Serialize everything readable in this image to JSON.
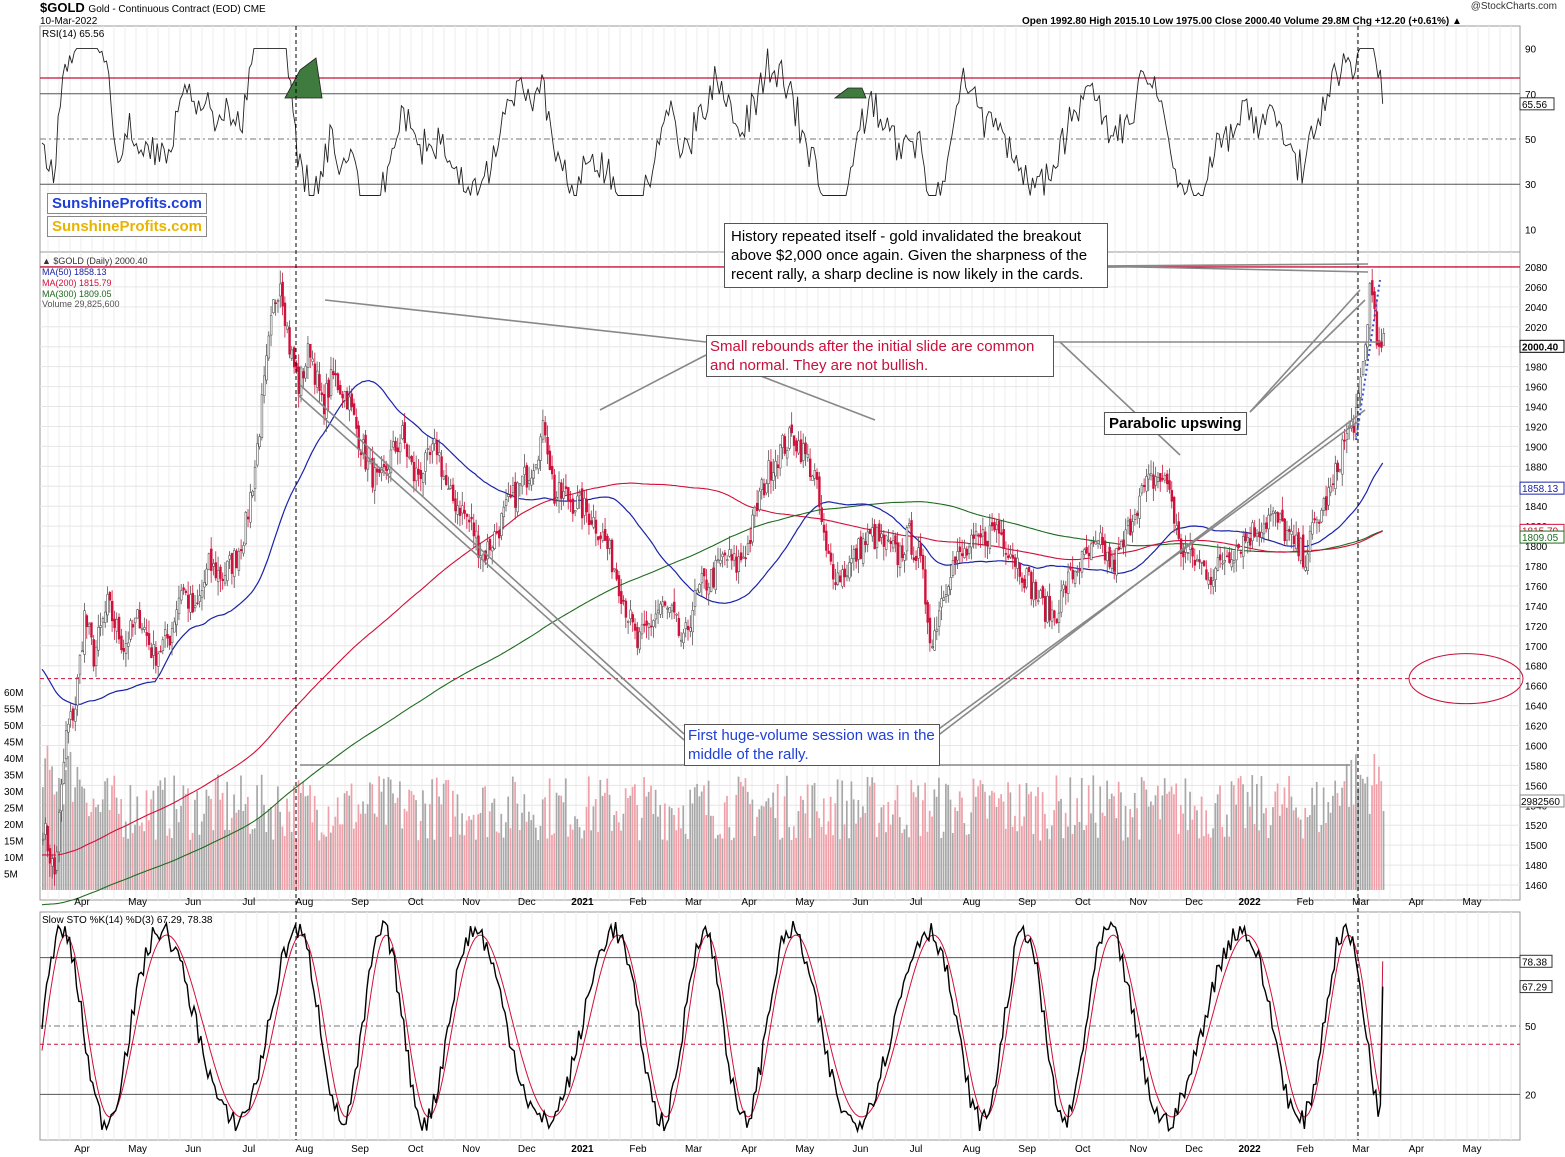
{
  "header": {
    "symbol": "$GOLD",
    "description": "Gold - Continuous Contract (EOD)  CME",
    "date": "10-Mar-2022",
    "ohlc": "Open 1992.80  High 2015.10  Low 1975.00  Close 2000.40  Volume 29.8M  Chg +12.20 (+0.61%) ▲",
    "credit": "@StockCharts.com"
  },
  "branding": {
    "line1": "SunshineProfits.com",
    "line2": "SunshineProfits.com",
    "color1": "#1f3fd6",
    "color2": "#e8b400"
  },
  "legend": {
    "price": "▲ $GOLD (Daily) 2000.40",
    "ma50": "MA(50) 1858.13",
    "ma200": "MA(200) 1815.79",
    "ma300": "MA(300) 1809.05",
    "volume": "Volume 29,825,600"
  },
  "annotations": {
    "history": "History repeated itself - gold invalidated the breakout above $2,000 once again. Given the sharpness of the recent rally, a sharp decline is now likely in the cards.",
    "rebounds": "Small rebounds after the initial slide are common and normal. They are not bullish.",
    "parabolic": "Parabolic upswing",
    "volume": "First huge-volume session was in the middle of the rally."
  },
  "colors": {
    "up": "#555555",
    "down": "#d0103a",
    "ma50": "#1a23a8",
    "ma200": "#d0103a",
    "ma300": "#1f6b1f",
    "rsiFill": "#3f7a3f",
    "volUp": "#a8a8a8",
    "volDown": "#f0a0a8",
    "annoRed": "#c8103a",
    "annoBlue": "#1f3fd6"
  },
  "chart_data": [
    {
      "panel": "rsi",
      "type": "line",
      "title": "RSI(14) 65.56",
      "current": 65.56,
      "levels": [
        30,
        50,
        70
      ],
      "ticks": [
        10,
        30,
        50,
        70,
        90
      ],
      "ylim": [
        0,
        100
      ]
    },
    {
      "panel": "price",
      "type": "candlestick",
      "title": "$GOLD (Daily) 2000.40",
      "months": [
        "Apr",
        "May",
        "Jun",
        "Jul",
        "Aug",
        "Sep",
        "Oct",
        "Nov",
        "Dec",
        "2021",
        "Feb",
        "Mar",
        "Apr",
        "May",
        "Jun",
        "Jul",
        "Aug",
        "Sep",
        "Oct",
        "Nov",
        "Dec",
        "2022",
        "Feb",
        "Mar",
        "Apr",
        "May"
      ],
      "ticks": [
        1460,
        1480,
        1500,
        1520,
        1540,
        1560,
        1580,
        1600,
        1620,
        1640,
        1660,
        1680,
        1700,
        1720,
        1740,
        1760,
        1780,
        1800,
        1820,
        1840,
        1860,
        1880,
        1900,
        1920,
        1940,
        1960,
        1980,
        2000,
        2020,
        2040,
        2060,
        2080
      ],
      "ylim": [
        1445,
        2095
      ],
      "close_path": [
        [
          0,
          1520
        ],
        [
          5,
          1470
        ],
        [
          10,
          1610
        ],
        [
          14,
          1640
        ],
        [
          18,
          1730
        ],
        [
          22,
          1690
        ],
        [
          28,
          1740
        ],
        [
          35,
          1700
        ],
        [
          42,
          1730
        ],
        [
          48,
          1690
        ],
        [
          55,
          1710
        ],
        [
          60,
          1760
        ],
        [
          66,
          1730
        ],
        [
          72,
          1780
        ],
        [
          78,
          1770
        ],
        [
          84,
          1790
        ],
        [
          88,
          1820
        ],
        [
          92,
          1880
        ],
        [
          96,
          1960
        ],
        [
          100,
          2040
        ],
        [
          103,
          2070
        ],
        [
          107,
          2000
        ],
        [
          111,
          1960
        ],
        [
          116,
          2000
        ],
        [
          121,
          1940
        ],
        [
          126,
          1970
        ],
        [
          132,
          1950
        ],
        [
          137,
          1910
        ],
        [
          141,
          1880
        ],
        [
          146,
          1860
        ],
        [
          151,
          1890
        ],
        [
          156,
          1910
        ],
        [
          161,
          1870
        ],
        [
          166,
          1880
        ],
        [
          171,
          1900
        ],
        [
          176,
          1850
        ],
        [
          181,
          1840
        ],
        [
          186,
          1820
        ],
        [
          191,
          1790
        ],
        [
          196,
          1810
        ],
        [
          202,
          1840
        ],
        [
          207,
          1860
        ],
        [
          212,
          1880
        ],
        [
          218,
          1920
        ],
        [
          222,
          1850
        ],
        [
          227,
          1850
        ],
        [
          233,
          1840
        ],
        [
          238,
          1830
        ],
        [
          243,
          1810
        ],
        [
          248,
          1780
        ],
        [
          253,
          1740
        ],
        [
          258,
          1700
        ],
        [
          263,
          1720
        ],
        [
          268,
          1740
        ],
        [
          273,
          1730
        ],
        [
          278,
          1700
        ],
        [
          282,
          1740
        ],
        [
          286,
          1760
        ],
        [
          291,
          1770
        ],
        [
          296,
          1790
        ],
        [
          301,
          1780
        ],
        [
          306,
          1800
        ],
        [
          311,
          1850
        ],
        [
          316,
          1880
        ],
        [
          321,
          1900
        ],
        [
          326,
          1910
        ],
        [
          331,
          1890
        ],
        [
          335,
          1870
        ],
        [
          340,
          1790
        ],
        [
          345,
          1770
        ],
        [
          350,
          1780
        ],
        [
          355,
          1800
        ],
        [
          360,
          1810
        ],
        [
          366,
          1800
        ],
        [
          371,
          1790
        ],
        [
          376,
          1810
        ],
        [
          381,
          1780
        ],
        [
          386,
          1700
        ],
        [
          389,
          1740
        ],
        [
          394,
          1780
        ],
        [
          399,
          1790
        ],
        [
          404,
          1800
        ],
        [
          409,
          1810
        ],
        [
          414,
          1820
        ],
        [
          419,
          1800
        ],
        [
          424,
          1780
        ],
        [
          429,
          1760
        ],
        [
          434,
          1740
        ],
        [
          439,
          1730
        ],
        [
          444,
          1760
        ],
        [
          449,
          1780
        ],
        [
          454,
          1790
        ],
        [
          459,
          1800
        ],
        [
          464,
          1780
        ],
        [
          469,
          1800
        ],
        [
          474,
          1840
        ],
        [
          479,
          1860
        ],
        [
          484,
          1870
        ],
        [
          489,
          1860
        ],
        [
          493,
          1800
        ],
        [
          498,
          1790
        ],
        [
          503,
          1780
        ],
        [
          508,
          1770
        ],
        [
          513,
          1790
        ],
        [
          518,
          1800
        ],
        [
          523,
          1810
        ],
        [
          528,
          1820
        ],
        [
          533,
          1830
        ],
        [
          538,
          1820
        ],
        [
          543,
          1800
        ],
        [
          548,
          1790
        ],
        [
          552,
          1820
        ],
        [
          556,
          1840
        ],
        [
          560,
          1860
        ],
        [
          564,
          1900
        ],
        [
          568,
          1920
        ],
        [
          571,
          1940
        ],
        [
          574,
          2000
        ],
        [
          576,
          2060
        ],
        [
          578,
          2040
        ],
        [
          580,
          1990
        ],
        [
          582,
          2000
        ]
      ],
      "ma50": 1858.13,
      "ma200": 1815.79,
      "ma300": 1809.05,
      "last": 2000.4,
      "resistance": 2080,
      "support": 1667
    },
    {
      "panel": "volume",
      "type": "bar",
      "title": "Volume 29,825,600",
      "ticks_left": [
        "5M",
        "10M",
        "15M",
        "20M",
        "25M",
        "30M",
        "35M",
        "40M",
        "45M",
        "50M",
        "55M",
        "60M"
      ],
      "last": 29825600
    },
    {
      "panel": "stochastic",
      "type": "line",
      "title": "Slow STO %K(14) %D(3) 67.29, 78.38",
      "k": 67.29,
      "d": 78.38,
      "levels": [
        20,
        50,
        80
      ],
      "ylim": [
        0,
        100
      ]
    }
  ]
}
